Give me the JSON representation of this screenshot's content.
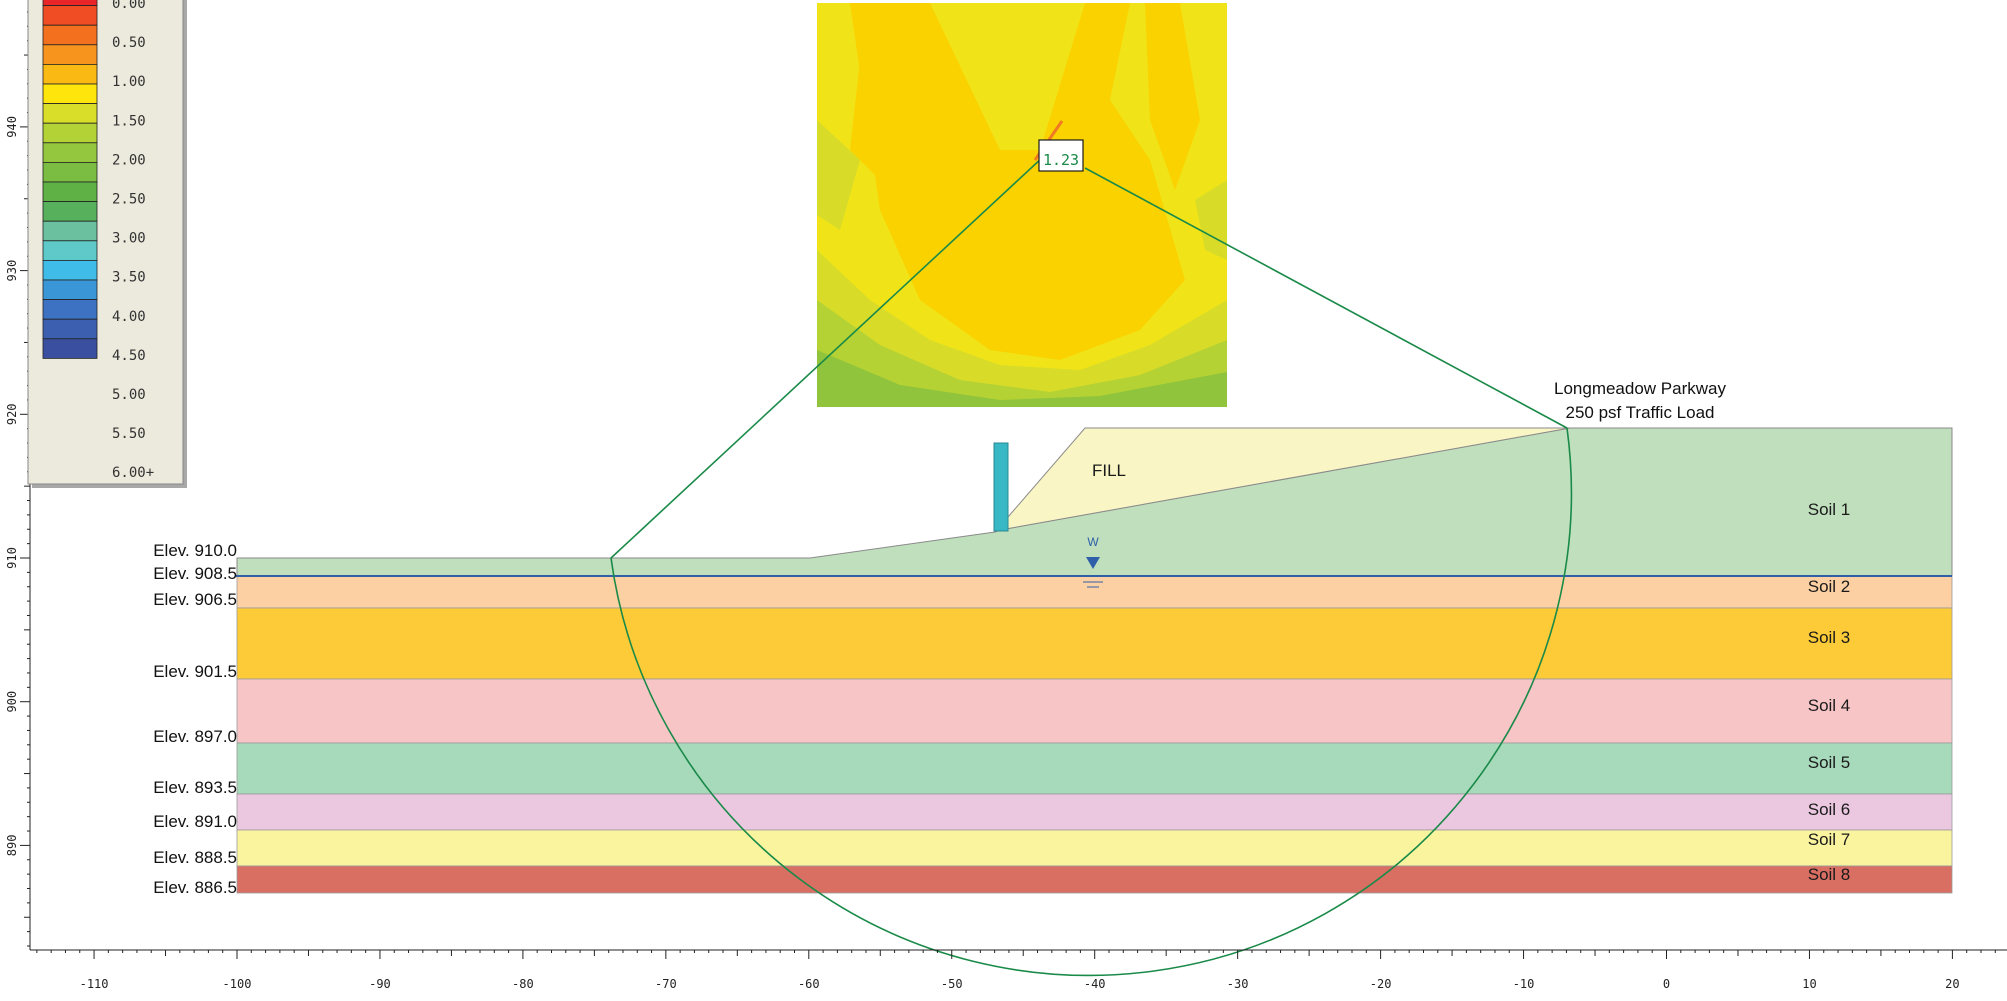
{
  "legend": {
    "labels": [
      "0.00",
      "0.50",
      "1.00",
      "1.50",
      "2.00",
      "2.50",
      "3.00",
      "3.50",
      "4.00",
      "4.50",
      "5.00",
      "5.50",
      "6.00+"
    ],
    "colors": [
      "#e8262a",
      "#f04d24",
      "#f3701f",
      "#f7941d",
      "#fbb914",
      "#fee60d",
      "#d9de29",
      "#b2d236",
      "#94c73d",
      "#7bbd43",
      "#5fb146",
      "#56b05c",
      "#6bc0a0",
      "#5fc8c8",
      "#3fbce8",
      "#3a96d6",
      "#3d72c2",
      "#3c5fb0",
      "#3a4f9f"
    ]
  },
  "y_axis": {
    "ticks": [
      890,
      900,
      910,
      920,
      930,
      940
    ]
  },
  "x_axis": {
    "ticks": [
      -110,
      -100,
      -90,
      -80,
      -70,
      -60,
      -50,
      -40,
      -30,
      -20,
      -10,
      0,
      10,
      20
    ]
  },
  "elevations": [
    "Elev. 910.0",
    "Elev. 908.5",
    "Elev. 906.5",
    "Elev. 901.5",
    "Elev. 897.0",
    "Elev. 893.5",
    "Elev. 891.0",
    "Elev. 888.5",
    "Elev. 886.5"
  ],
  "layers": [
    {
      "label": "Soil 1",
      "color": "#c0dfbd"
    },
    {
      "label": "Soil 2",
      "color": "#fcd0a3"
    },
    {
      "label": "Soil 3",
      "color": "#fecb38"
    },
    {
      "label": "Soil 4",
      "color": "#f7c5c6"
    },
    {
      "label": "Soil 5",
      "color": "#a7d9bb"
    },
    {
      "label": "Soil 6",
      "color": "#ebc8e0"
    },
    {
      "label": "Soil 7",
      "color": "#fbf49f"
    },
    {
      "label": "Soil 8",
      "color": "#d96e62"
    }
  ],
  "fill": {
    "label": "FILL",
    "color": "#f9f5c4"
  },
  "wall": {
    "color": "#38b7c4"
  },
  "road": {
    "line1": "Longmeadow Parkway",
    "line2": "250 psf Traffic Load"
  },
  "water_table": {
    "label": "W",
    "color": "#2f5fa8"
  },
  "slip_surface": {
    "factor_of_safety": "1.23",
    "color": "#1a8a48"
  },
  "contour": {
    "colors": [
      "#fad200",
      "#f0e418",
      "#d8dc28",
      "#b5d234",
      "#8fc43c",
      "#f2a81a"
    ]
  }
}
